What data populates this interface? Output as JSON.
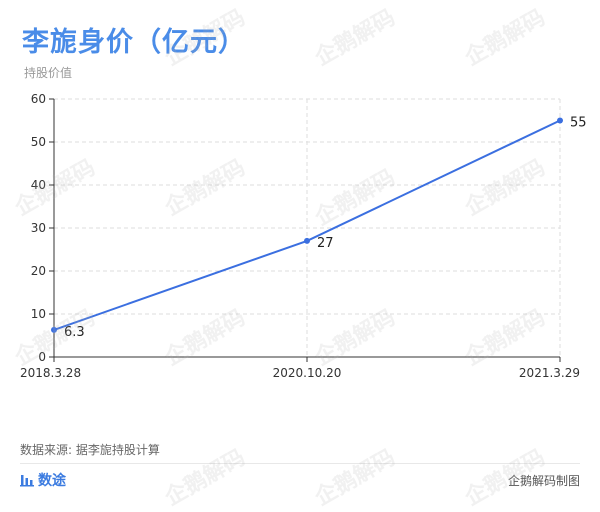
{
  "title": "李旎身价（亿元）",
  "subtitle": "持股价值",
  "source": "数据来源: 据李旎持股计算",
  "brand": {
    "name": "数途",
    "icon": "bar-chart-icon"
  },
  "credit": "企鹅解码制图",
  "watermark": "企鹅解码",
  "colors": {
    "title": "#4a8ce8",
    "line": "#3b6fe0",
    "grid": "#dddddd",
    "brand": "#3b7be0"
  },
  "chart_data": {
    "type": "line",
    "x": [
      "2018.3.28",
      "2020.10.20",
      "2021.3.29"
    ],
    "series": [
      {
        "values": [
          6.3,
          27,
          55
        ],
        "labels": [
          "6.3",
          "27",
          "55"
        ]
      }
    ],
    "ylim": [
      0,
      60
    ],
    "yticks": [
      0,
      10,
      20,
      30,
      40,
      50,
      60
    ],
    "grid": true,
    "legend": "none"
  }
}
